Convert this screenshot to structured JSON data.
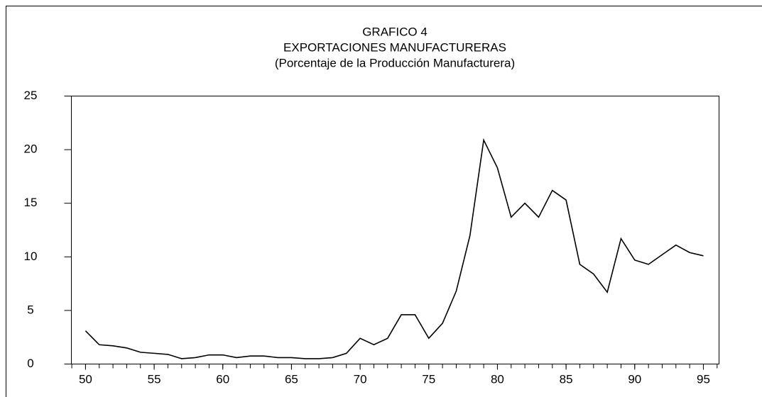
{
  "chart_data": {
    "type": "line",
    "title_lines": [
      "GRAFICO 4",
      "EXPORTACIONES MANUFACTURERAS",
      "(Porcentaje de la Producción Manufacturera)"
    ],
    "x": [
      50,
      51,
      52,
      53,
      54,
      55,
      56,
      57,
      58,
      59,
      60,
      61,
      62,
      63,
      64,
      65,
      66,
      67,
      68,
      69,
      70,
      71,
      72,
      73,
      74,
      75,
      76,
      77,
      78,
      79,
      80,
      81,
      82,
      83,
      84,
      85,
      86,
      87,
      88,
      89,
      90,
      91,
      92,
      93,
      94,
      95
    ],
    "series": [
      {
        "color": "#000000",
        "values": [
          3.1,
          1.8,
          1.7,
          1.5,
          1.1,
          1.0,
          0.9,
          0.5,
          0.6,
          0.85,
          0.85,
          0.6,
          0.75,
          0.75,
          0.6,
          0.6,
          0.5,
          0.5,
          0.6,
          1.0,
          2.4,
          1.8,
          2.4,
          4.6,
          4.6,
          2.4,
          3.8,
          6.8,
          12.0,
          20.9,
          18.3,
          13.7,
          15.0,
          13.7,
          16.2,
          15.3,
          9.3,
          8.4,
          6.7,
          11.7,
          9.7,
          9.3,
          10.2,
          11.1,
          10.4,
          10.1
        ]
      }
    ],
    "xlim": [
      48.97,
      96.14
    ],
    "xticks": [
      50,
      55,
      60,
      65,
      70,
      75,
      80,
      85,
      90,
      95
    ],
    "ylim": [
      0,
      25
    ],
    "yticks": [
      0,
      5,
      10,
      15,
      20,
      25
    ]
  }
}
